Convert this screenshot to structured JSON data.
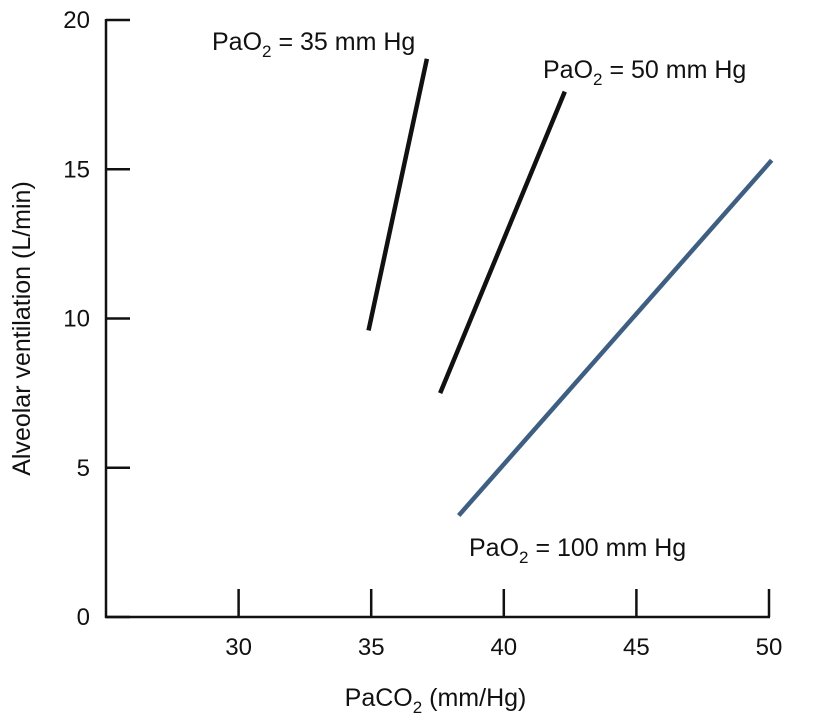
{
  "chart_data": {
    "type": "line",
    "title": "",
    "xlabel": {
      "prefix": "PaCO",
      "sub": "2",
      "suffix": " (mm/Hg)"
    },
    "ylabel": "Alveolar ventilation (L/min)",
    "xlim": [
      25,
      50
    ],
    "ylim": [
      0,
      20
    ],
    "x_ticks": [
      30,
      35,
      40,
      45,
      50
    ],
    "x_tick_labels": [
      "30",
      "35",
      "40",
      "45",
      "50"
    ],
    "y_ticks": [
      0,
      5,
      10,
      15,
      20
    ],
    "y_tick_labels": [
      "0",
      "5",
      "10",
      "15",
      "20"
    ],
    "grid": false,
    "legend": "none",
    "series": [
      {
        "name": {
          "prefix": "PaO",
          "sub": "2",
          "suffix": " = 35 mm Hg"
        },
        "color": "#111111",
        "points": [
          [
            34.9,
            9.6
          ],
          [
            37.1,
            18.7
          ]
        ]
      },
      {
        "name": {
          "prefix": "PaO",
          "sub": "2",
          "suffix": " = 50 mm Hg"
        },
        "color": "#111111",
        "points": [
          [
            37.6,
            7.5
          ],
          [
            42.3,
            17.6
          ]
        ]
      },
      {
        "name": {
          "prefix": "PaO",
          "sub": "2",
          "suffix": " = 100 mm Hg"
        },
        "color": "#3f5f82",
        "points": [
          [
            38.3,
            3.4
          ],
          [
            50.1,
            15.3
          ]
        ]
      }
    ]
  }
}
